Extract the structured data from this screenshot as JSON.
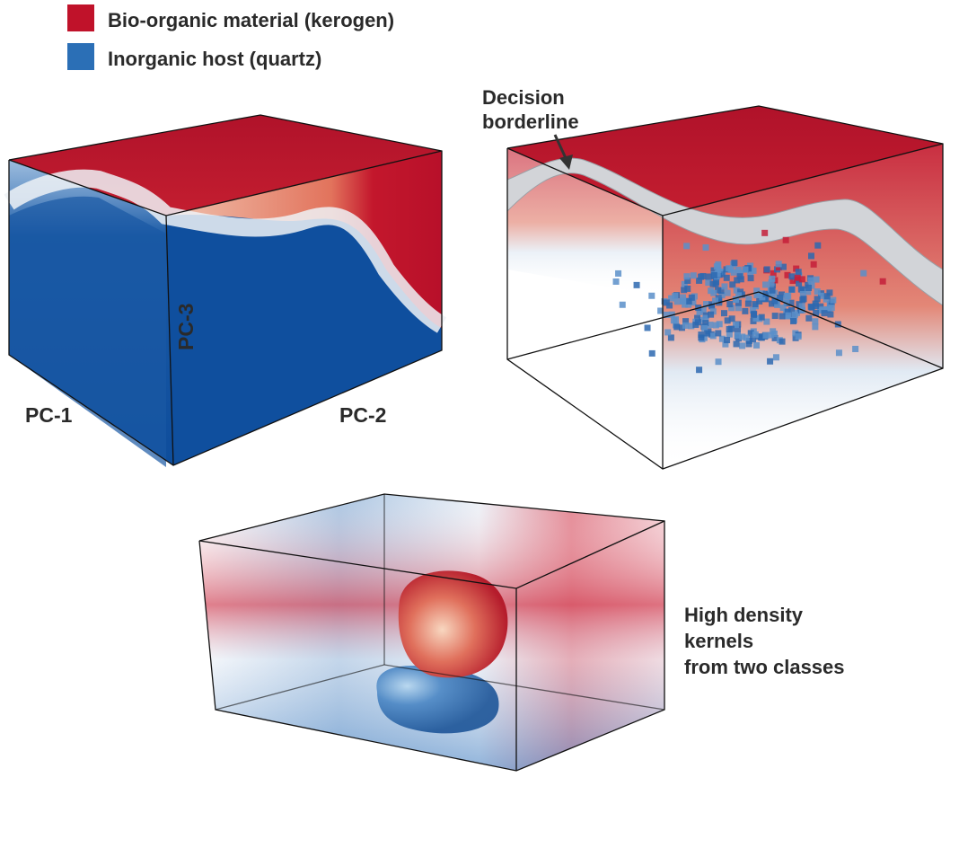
{
  "legend": [
    {
      "label": "Bio-organic material (kerogen)",
      "color": "#c0122a"
    },
    {
      "label": "Inorganic host (quartz)",
      "color": "#2b6fb6"
    }
  ],
  "axis_labels": {
    "pc1": "PC-1",
    "pc2": "PC-2",
    "pc3": "PC-3"
  },
  "annotations": {
    "decision": [
      "Decision",
      "borderline"
    ],
    "kernels": [
      "High density",
      "kernels",
      "from two classes"
    ]
  }
}
